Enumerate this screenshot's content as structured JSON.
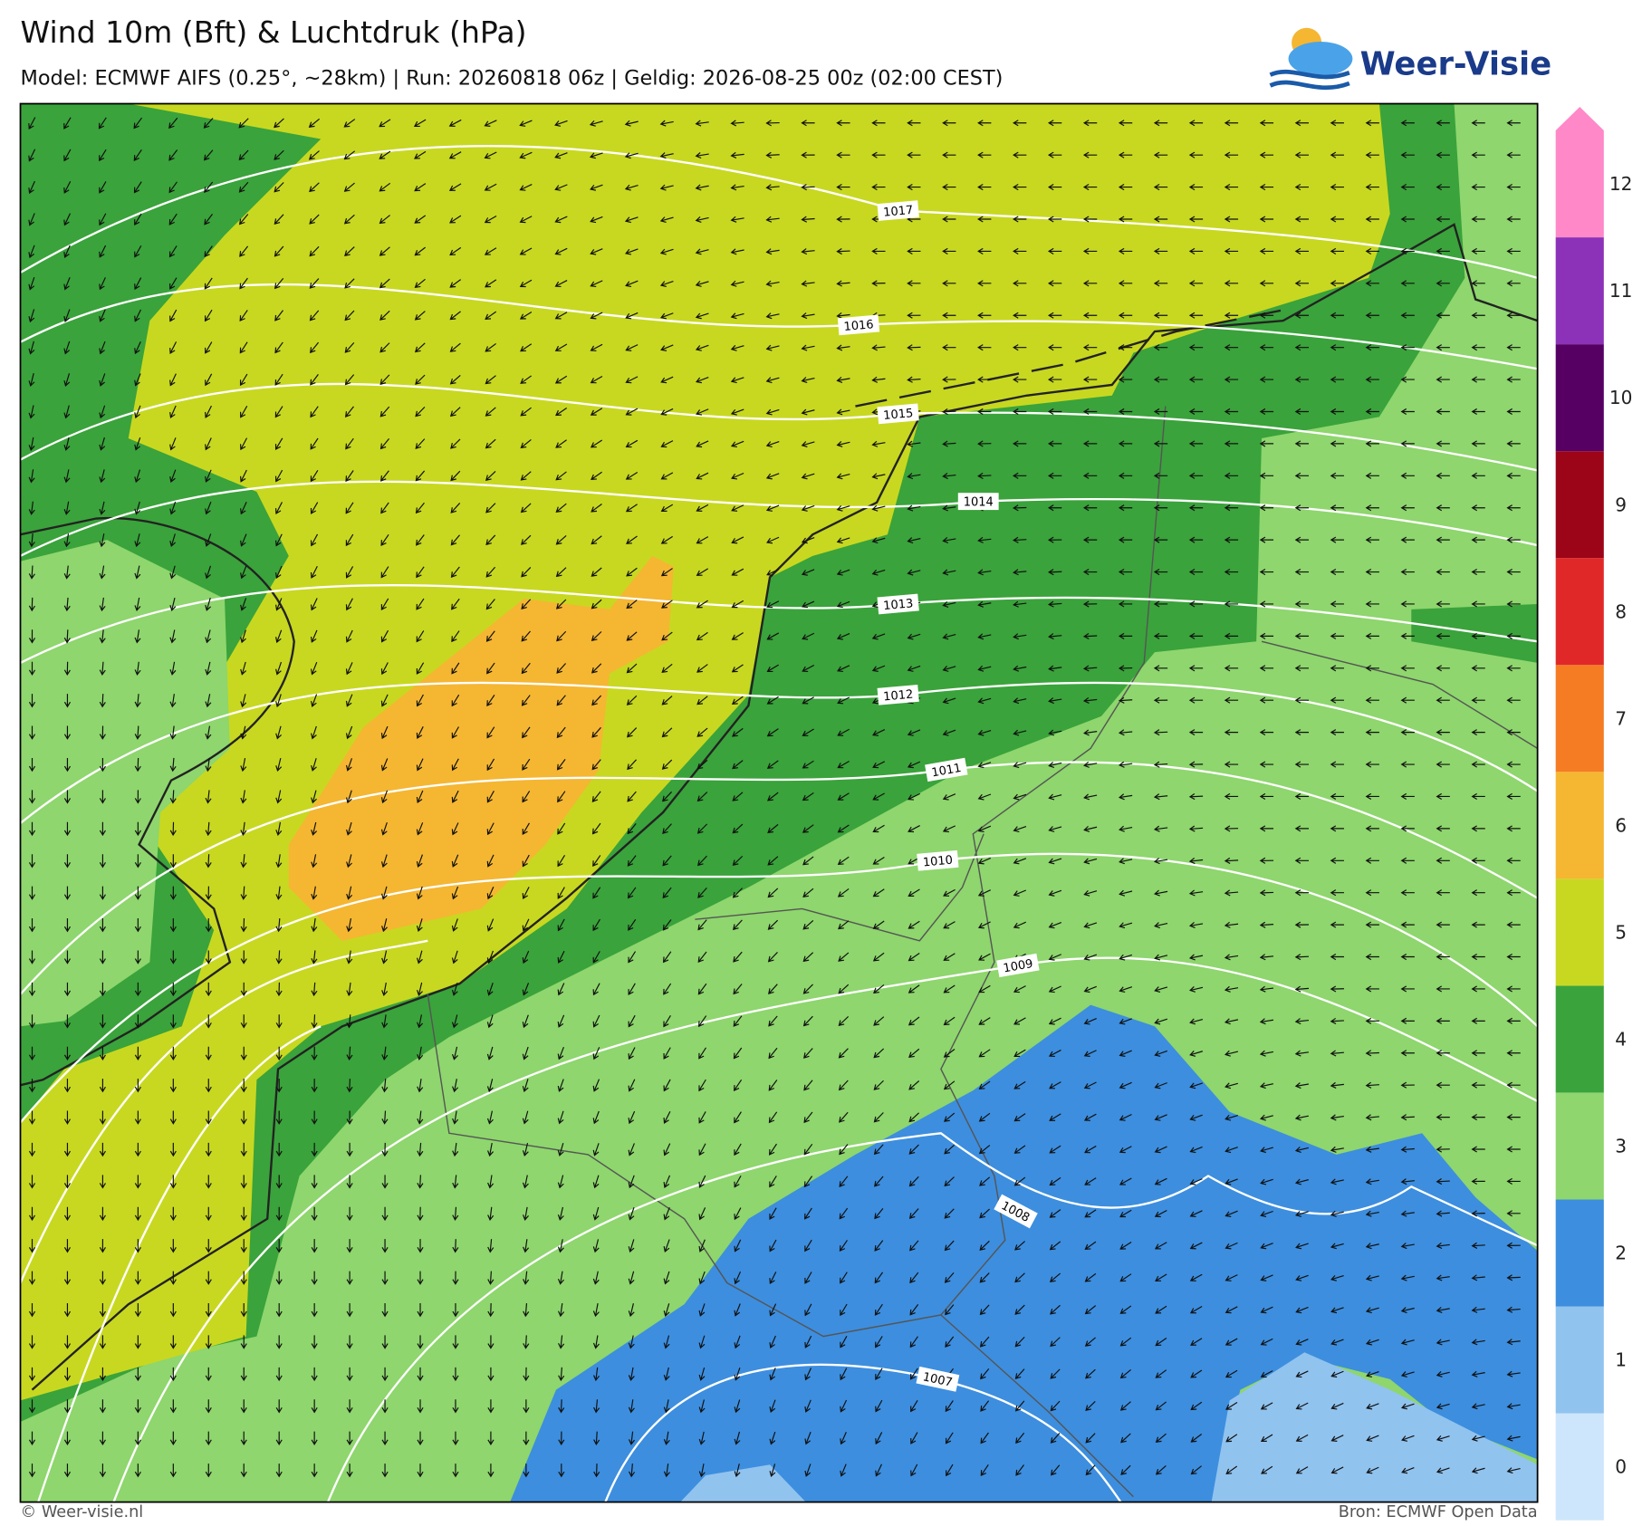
{
  "header": {
    "title": "Wind 10m (Bft) & Luchtdruk (hPa)",
    "subtitle": "Model: ECMWF AIFS (0.25°, ~28km)  |  Run: 20260818 06z  |  Geldig: 2026-08-25 00z (02:00 CEST)"
  },
  "logo": {
    "text": "Weer-Visie"
  },
  "colorbar": {
    "levels": [
      {
        "value": 0,
        "color": "#cde6fb"
      },
      {
        "value": 1,
        "color": "#91c3ef"
      },
      {
        "value": 2,
        "color": "#3d8ede"
      },
      {
        "value": 3,
        "color": "#8ed66d"
      },
      {
        "value": 4,
        "color": "#3aa33b"
      },
      {
        "value": 5,
        "color": "#c8d820"
      },
      {
        "value": 6,
        "color": "#f5b632"
      },
      {
        "value": 7,
        "color": "#f57c22"
      },
      {
        "value": 8,
        "color": "#e12828"
      },
      {
        "value": 9,
        "color": "#9c0418"
      },
      {
        "value": 10,
        "color": "#560064"
      },
      {
        "value": 11,
        "color": "#8b32b8"
      },
      {
        "value": 12,
        "color": "#ff88c8"
      }
    ]
  },
  "isobars": {
    "labels": [
      1017,
      1016,
      1015,
      1014,
      1013,
      1012,
      1011,
      1010,
      1009,
      1008,
      1007
    ]
  },
  "footer": {
    "left": "© Weer-visie.nl",
    "right": "Bron: ECMWF Open Data"
  }
}
